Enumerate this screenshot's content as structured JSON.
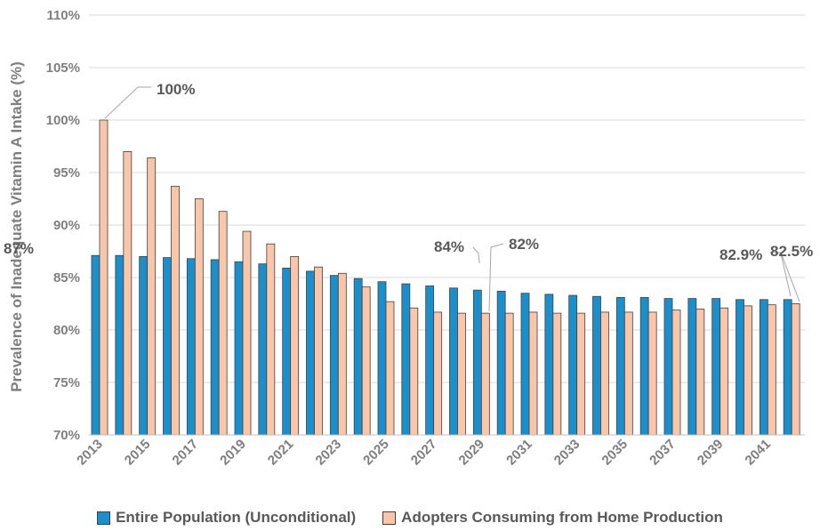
{
  "chart_data": {
    "type": "bar",
    "ylabel": "Prevalence of Inadequate Vitamin A Intake (%)",
    "ylim": [
      70,
      110
    ],
    "yticks": [
      "70%",
      "75%",
      "80%",
      "85%",
      "90%",
      "95%",
      "100%",
      "105%",
      "110%"
    ],
    "grid": true,
    "legend_position": "bottom",
    "categories": [
      2013,
      2014,
      2015,
      2016,
      2017,
      2018,
      2019,
      2020,
      2021,
      2022,
      2023,
      2024,
      2025,
      2026,
      2027,
      2028,
      2029,
      2030,
      2031,
      2032,
      2033,
      2034,
      2035,
      2036,
      2037,
      2038,
      2039,
      2040,
      2041,
      2042
    ],
    "xtick_labels": [
      "2013",
      "2015",
      "2017",
      "2019",
      "2021",
      "2023",
      "2025",
      "2027",
      "2029",
      "2031",
      "2033",
      "2035",
      "2037",
      "2039",
      "2041"
    ],
    "series": [
      {
        "name": "Entire Population (Unconditional)",
        "color": "#1b8fcb",
        "values": [
          87.1,
          87.1,
          87.0,
          86.9,
          86.8,
          86.7,
          86.5,
          86.3,
          85.9,
          85.6,
          85.2,
          84.9,
          84.6,
          84.4,
          84.2,
          84.0,
          83.8,
          83.7,
          83.5,
          83.4,
          83.3,
          83.2,
          83.1,
          83.1,
          83.0,
          83.0,
          83.0,
          82.9,
          82.9,
          82.9
        ]
      },
      {
        "name": "Adopters Consuming from Home Production",
        "color": "#f9c6aa",
        "values": [
          100.0,
          97.0,
          96.4,
          93.7,
          92.5,
          91.3,
          89.4,
          88.2,
          87.0,
          86.0,
          85.4,
          84.1,
          82.7,
          82.1,
          81.7,
          81.6,
          81.6,
          81.6,
          81.7,
          81.6,
          81.6,
          81.7,
          81.7,
          81.7,
          81.9,
          82.0,
          82.1,
          82.3,
          82.4,
          82.5
        ]
      }
    ],
    "annotations": {
      "start_adopters": "100%",
      "start_population": "87%",
      "mid_population": "84%",
      "mid_adopters": "82%",
      "end_population": "82.9%",
      "end_adopters": "82.5%"
    }
  }
}
